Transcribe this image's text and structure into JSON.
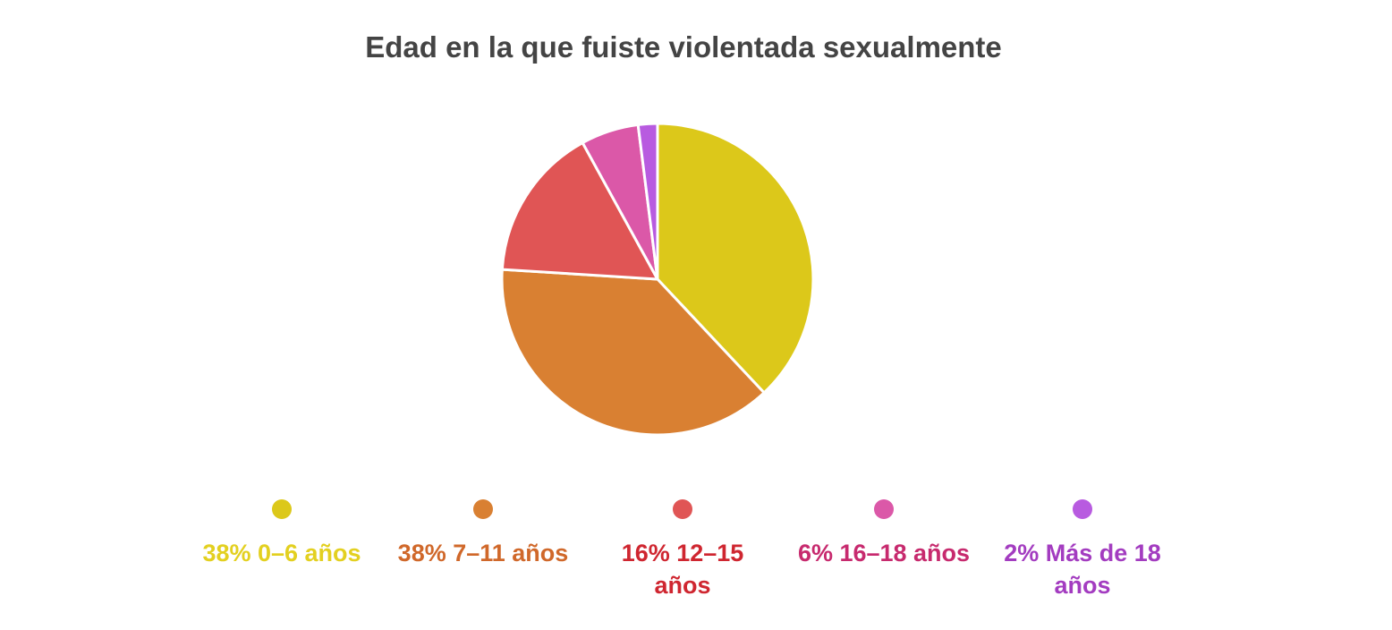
{
  "chart_data": {
    "type": "pie",
    "title": "Edad en la que fuiste violentada sexualmente",
    "slices": [
      {
        "label": "0–6 años",
        "value": 38,
        "legend": "38% 0–6 años",
        "color": "#dcc81a",
        "text_color": "#e3d020"
      },
      {
        "label": "7–11 años",
        "value": 38,
        "legend": "38% 7–11 años",
        "color": "#d98032",
        "text_color": "#d0682a"
      },
      {
        "label": "12–15 años",
        "value": 16,
        "legend": "16% 12–15 años",
        "color": "#e05555",
        "text_color": "#cf2630"
      },
      {
        "label": "16–18 años",
        "value": 6,
        "legend": "6% 16–18 años",
        "color": "#db58a8",
        "text_color": "#c72a6e"
      },
      {
        "label": "Más de 18 años",
        "value": 2,
        "legend": "2% Más de 18 años",
        "color": "#b85be0",
        "text_color": "#a33cc0"
      }
    ],
    "legend_position": "bottom"
  }
}
